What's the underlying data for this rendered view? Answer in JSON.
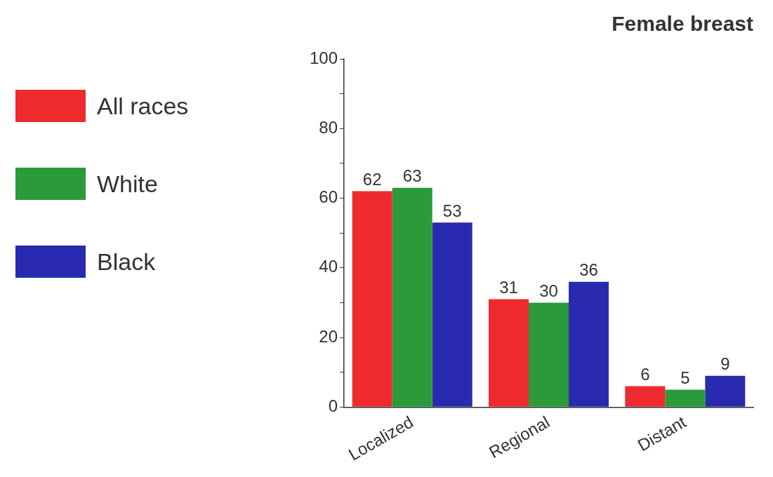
{
  "chart_data": {
    "type": "bar",
    "title": "Female breast",
    "categories": [
      "Localized",
      "Regional",
      "Distant"
    ],
    "series": [
      {
        "name": "All races",
        "color": "#ee2a2e",
        "values": [
          62,
          31,
          6
        ]
      },
      {
        "name": "White",
        "color": "#2a9a3a",
        "values": [
          63,
          30,
          5
        ]
      },
      {
        "name": "Black",
        "color": "#2a2ab0",
        "values": [
          53,
          36,
          9
        ]
      }
    ],
    "ylim": [
      0,
      100
    ],
    "yticks": [
      0,
      {
        "value": 10,
        "label": null
      },
      20,
      {
        "value": 30,
        "label": null
      },
      40,
      {
        "value": 50,
        "label": null
      },
      60,
      {
        "value": 70,
        "label": null
      },
      80,
      {
        "value": 90,
        "label": null
      },
      100
    ],
    "data_labels": true,
    "legend": "left",
    "grid": false
  }
}
